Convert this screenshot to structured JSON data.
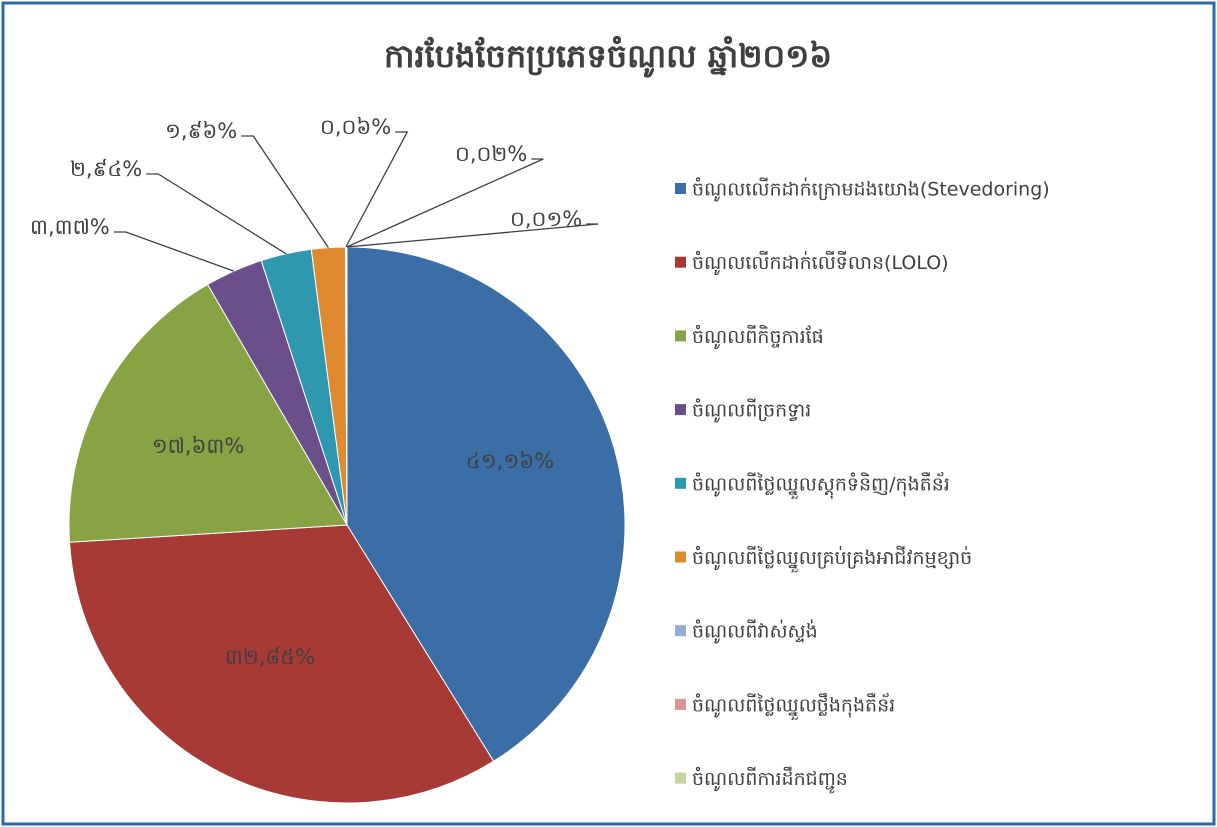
{
  "chart_data": {
    "type": "pie",
    "title": "ការបែងចែកប្រភេទចំណូល ឆ្នាំ២០១៦",
    "categories": [
      "ចំណូលលើកដាក់ក្រោមដងយោង(Stevedoring)",
      "ចំណូលលើកដាក់លើទីលាន(LOLO)",
      "ចំណូលពីកិច្ចការផែ",
      "ចំណូលពីច្រកទ្វារ",
      "ចំណូលពីថ្លៃឈ្នួលស្តុកទំនិញ/កុងតឺន័រ",
      "ចំណូលពីថ្លៃឈ្នួលគ្រប់គ្រងអាជីវកម្មខ្សាច់",
      "ចំណូលពីវាស់ស្ទង់",
      "ចំណូលពីថ្លៃឈ្នួលថ្លឹងកុងតឺន័រ",
      "ចំណូលពីការដឹកជញ្ជូន"
    ],
    "values": [
      41.16,
      32.85,
      17.63,
      3.37,
      2.94,
      1.96,
      0.06,
      0.02,
      0.01
    ],
    "value_labels": [
      "៤១,១៦%",
      "៣២,៨៥%",
      "១៧,៦៣%",
      "៣,៣៧%",
      "២,៩៤%",
      "១,៩៦%",
      "០,០៦%",
      "០,០២%",
      "០,០១%"
    ],
    "colors": [
      "#3b6ea6",
      "#a83a36",
      "#87a344",
      "#6b4f8a",
      "#2f98b1",
      "#e08a30",
      "#94aed6",
      "#d99694",
      "#c3d69b"
    ],
    "legend": "right"
  }
}
